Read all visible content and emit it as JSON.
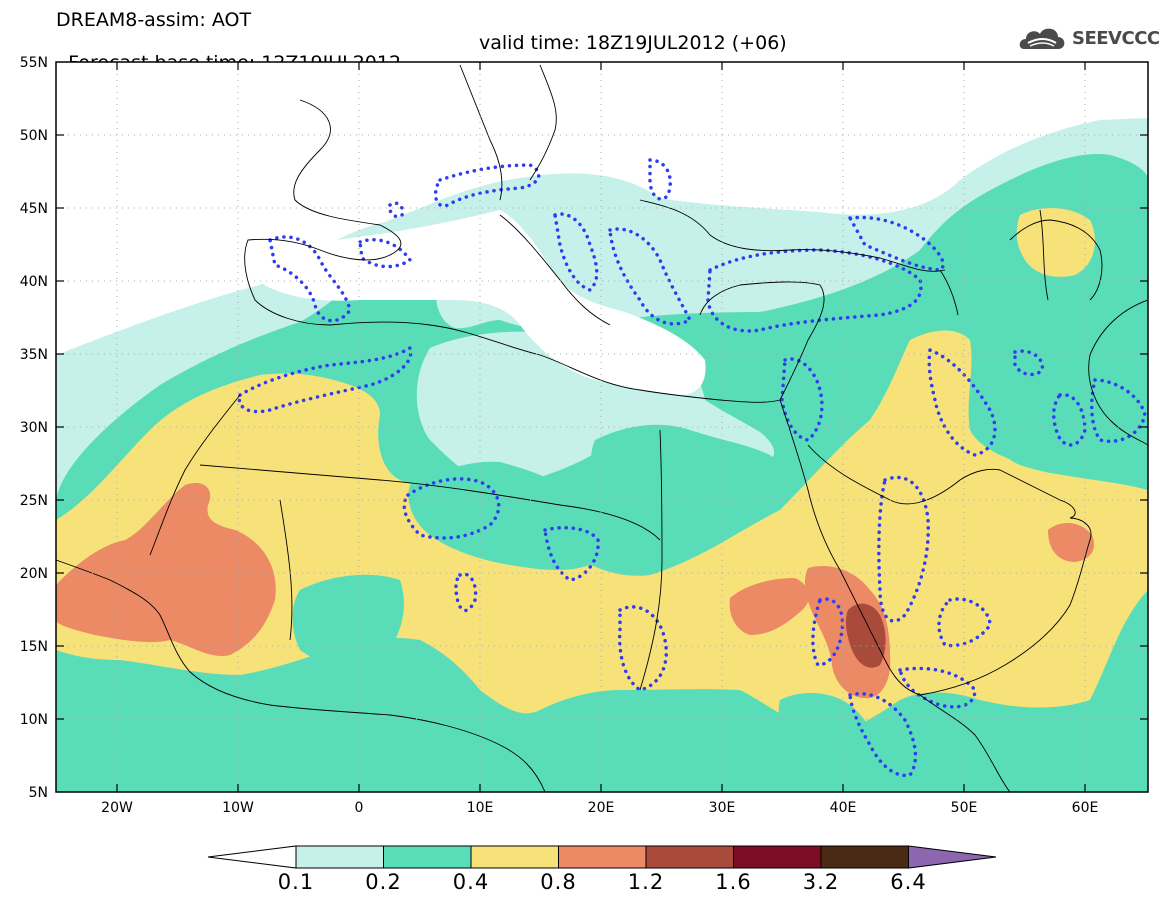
{
  "header": {
    "line1": "DREAM8-assim: AOT",
    "line2_base": "Forecast base time: 12Z19JUL2012",
    "line2_valid": "valid time: 18Z19JUL2012 (+06)",
    "logo_text": "SEEVCCC",
    "logo_icon": "cloud-icon"
  },
  "map": {
    "lon_range": [
      -25,
      65
    ],
    "lat_range": [
      5,
      55
    ],
    "lat_labels": [
      "55N",
      "50N",
      "45N",
      "40N",
      "35N",
      "30N",
      "25N",
      "20N",
      "15N",
      "10N",
      "5N"
    ],
    "lon_labels": [
      "20W",
      "10W",
      "0",
      "10E",
      "20E",
      "30E",
      "40E",
      "50E",
      "60E"
    ],
    "gridlines": "dotted"
  },
  "colorbar": {
    "labels": [
      "0.1",
      "0.2",
      "0.4",
      "0.8",
      "1.2",
      "1.6",
      "3.2",
      "6.4"
    ],
    "colors": [
      "#ffffff",
      "#c6f1ea",
      "#59ddb9",
      "#f7e27a",
      "#ec8a66",
      "#a94b3a",
      "#7b0e25",
      "#4a2a14",
      "#8c66ae"
    ]
  }
}
